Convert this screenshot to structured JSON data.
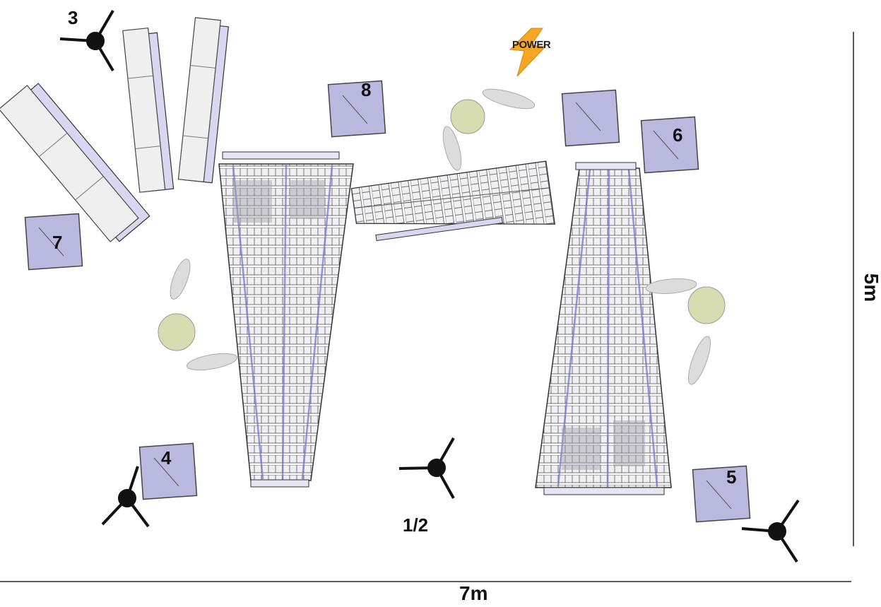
{
  "labels": {
    "mic_3": "3",
    "mic_8": "8",
    "mic_6": "6",
    "mic_7": "7",
    "mic_4": "4",
    "mic_5": "5",
    "mic_12": "1/2"
  },
  "power_label": "POWER",
  "dimensions": {
    "width_label": "7m",
    "height_label": "5m"
  },
  "colors": {
    "stand_fill": "#b9b9e0",
    "bar_fill": "#ececf2",
    "frame_blue": "#7a7ad0",
    "performer": "#d8dcb0",
    "power_bolt": "#f5a623"
  }
}
